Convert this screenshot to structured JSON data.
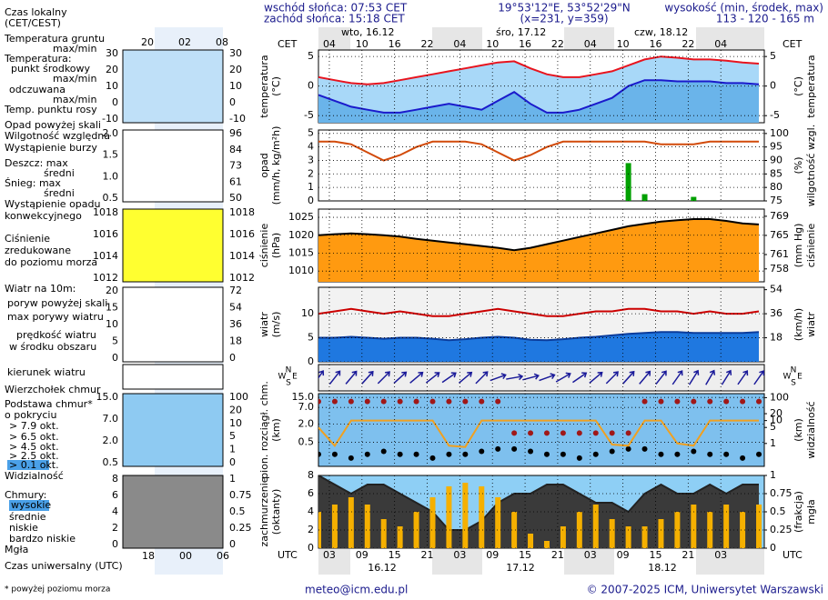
{
  "header": {
    "sunrise": "wschód słońca: 07:53 CET",
    "sunset": "zachód słońca: 15:18 CET",
    "coords": "19°53'12\"E, 53°52'29\"N",
    "grid": "(x=231,  y=359)",
    "alt_title": "wysokość (min, środek, max)",
    "alt_values": "113 - 120 - 165 m"
  },
  "legend": [
    "Czas lokalny",
    "(CET/CEST)",
    "Temperatura gruntu",
    "max/min",
    "Temperatura:",
    "punkt środkowy",
    "max/min",
    "odczuwana",
    "max/min",
    "Temp. punktu rosy",
    "Opad powyżej skali",
    "Wilgotność względna",
    "Wystąpienie burzy",
    "Deszcz: max",
    "średni",
    "Śnieg: max",
    "średni",
    "Wystąpienie opadu",
    "konwekcyjnego",
    "Ciśnienie",
    "zredukowane",
    "do poziomu morza",
    "Wiatr na 10m:",
    "poryw powyżej skali",
    "max porywy wiatru",
    "prędkość wiatru",
    "w środku obszaru",
    "kierunek wiatru",
    "Wierzchołek chmur",
    "Podstawa chmur*",
    "o pokryciu",
    "> 7.9 okt.",
    "> 6.5 okt.",
    "> 4.5 okt.",
    "> 2.5 okt.",
    "> 0.1 okt.",
    "Widzialność",
    "Chmury:",
    "wysokie",
    "średnie",
    "niskie",
    "bardzo niskie",
    "Mgła",
    "Czas uniwersalny (UTC)"
  ],
  "mini": {
    "top_ticks": [
      "20",
      "02",
      "08"
    ],
    "bottom_ticks": [
      "18",
      "00",
      "06"
    ],
    "panels": [
      {
        "left": [
          "30",
          "20",
          "10",
          "0",
          "-10"
        ],
        "right": [
          "30",
          "20",
          "10",
          "0",
          "-10"
        ]
      },
      {
        "left": [
          "2.0",
          "1.5",
          "1.0",
          "0.5"
        ],
        "right": [
          "96",
          "84",
          "73",
          "61",
          "50"
        ]
      },
      {
        "left": [
          "1018",
          "1016",
          "1014",
          "1012"
        ],
        "right": [
          "1018",
          "1016",
          "1014",
          "1012"
        ]
      },
      {
        "left": [
          "20",
          "15",
          "10",
          "5",
          "0"
        ],
        "right": [
          "72",
          "54",
          "36",
          "18",
          "0"
        ]
      },
      {
        "left": [],
        "right": []
      },
      {
        "left": [
          "15.0",
          "7.0",
          "2.0",
          "0.5"
        ],
        "right": [
          "100",
          "20",
          "10",
          "5",
          "1",
          "0"
        ]
      },
      {
        "left": [
          "8",
          "6",
          "4",
          "2",
          "0"
        ],
        "right": [
          "1",
          "0.75",
          "0.5",
          "0.25",
          "0"
        ]
      }
    ]
  },
  "axis": {
    "cet": "CET",
    "utc": "UTC",
    "days": [
      "wto, 16.12",
      "śro, 17.12",
      "czw, 18.12"
    ],
    "dates": [
      "16.12",
      "17.12",
      "18.12"
    ],
    "wind_dir": [
      "N",
      "W",
      "E",
      "S"
    ]
  },
  "time": {
    "x": [
      0,
      3,
      6,
      9,
      12,
      15,
      18,
      21,
      24,
      27,
      30,
      33,
      36,
      39,
      42,
      45,
      48,
      51,
      54,
      57,
      60,
      63,
      66,
      69,
      72,
      75,
      78,
      81
    ],
    "xlim": [
      0,
      82
    ],
    "xticks": [
      {
        "value": 2,
        "label": "03"
      },
      {
        "value": 8,
        "label": "09"
      },
      {
        "value": 14,
        "label": "15"
      },
      {
        "value": 20,
        "label": "21"
      },
      {
        "value": 26,
        "label": "03"
      },
      {
        "value": 32,
        "label": "09"
      },
      {
        "value": 38,
        "label": "15"
      },
      {
        "value": 44,
        "label": "21"
      },
      {
        "value": 50,
        "label": "03"
      },
      {
        "value": 56,
        "label": "09"
      },
      {
        "value": 62,
        "label": "15"
      },
      {
        "value": 68,
        "label": "21"
      },
      {
        "value": 74,
        "label": "03"
      }
    ],
    "xticks_top": [
      {
        "value": 2,
        "label": "04"
      },
      {
        "value": 8,
        "label": "10"
      },
      {
        "value": 14,
        "label": "16"
      },
      {
        "value": 20,
        "label": "22"
      },
      {
        "value": 26,
        "label": "04"
      },
      {
        "value": 32,
        "label": "10"
      },
      {
        "value": 38,
        "label": "16"
      },
      {
        "value": 44,
        "label": "22"
      },
      {
        "value": 50,
        "label": "04"
      },
      {
        "value": 56,
        "label": "10"
      },
      {
        "value": 62,
        "label": "16"
      },
      {
        "value": 68,
        "label": "22"
      },
      {
        "value": 74,
        "label": "04"
      }
    ]
  },
  "chart_data": [
    {
      "type": "line",
      "ylabel": [
        "temperatura",
        "(°C)"
      ],
      "y2label": [
        "(°C)",
        "temperatura"
      ],
      "ylim": [
        -6.2,
        6.1
      ],
      "yticks": [
        5,
        0,
        -5
      ],
      "y2lim": [
        -6.2,
        6.1
      ],
      "y2ticks": [
        5,
        0,
        -5
      ],
      "grid": true,
      "series": [
        {
          "type": "area",
          "color": "#e8141e",
          "fill": "#a8d8f8",
          "values": [
            1.5,
            1.0,
            0.5,
            0.3,
            0.5,
            1.0,
            1.5,
            2.0,
            2.5,
            3.0,
            3.5,
            4.0,
            4.2,
            3.0,
            2.0,
            1.5,
            1.5,
            2.0,
            2.5,
            3.5,
            4.5,
            5.0,
            4.8,
            4.5,
            4.5,
            4.3,
            4.0,
            3.8
          ]
        },
        {
          "type": "area",
          "color": "#1a1acc",
          "fill": "#6ab4ea",
          "values": [
            -1.5,
            -2.5,
            -3.5,
            -4,
            -4.5,
            -4.5,
            -4,
            -3.5,
            -3,
            -3.5,
            -4,
            -2.5,
            -1,
            -3,
            -4.5,
            -4.5,
            -4,
            -3,
            -2,
            0,
            1,
            1,
            0.8,
            0.8,
            0.8,
            0.5,
            0.5,
            0.3
          ]
        }
      ]
    },
    {
      "type": "bar",
      "ylabel": [
        "opad",
        "(mm/h, kg/m²h)"
      ],
      "y2label": [
        "(%)",
        "wilgotność wzgl."
      ],
      "ylim": [
        0,
        5.25
      ],
      "yticks": [
        5,
        4,
        3,
        2,
        1,
        0
      ],
      "y2lim": [
        75,
        101.3
      ],
      "y2ticks": [
        100,
        95,
        90,
        85,
        80,
        75
      ],
      "y2_color": "#c04000",
      "grid": true,
      "series": [
        {
          "type": "bar",
          "color": "#00a000",
          "values": [
            0,
            0,
            0,
            0,
            0,
            0,
            0,
            0,
            0,
            0,
            0,
            0,
            0,
            0,
            0,
            0,
            0,
            0,
            0,
            2.8,
            0.5,
            0,
            0,
            0.3,
            0,
            0,
            0,
            0
          ]
        },
        {
          "type": "line",
          "axis": "y2",
          "color": "#d24a0a",
          "values": [
            97,
            97,
            96,
            93,
            90,
            92,
            95,
            97,
            97,
            97,
            96,
            93,
            90,
            92,
            95,
            97,
            97,
            97,
            97,
            97,
            97,
            96,
            96,
            96,
            97,
            97,
            97,
            97
          ]
        }
      ]
    },
    {
      "type": "area",
      "ylabel": [
        "ciśnienie",
        "(hPa)"
      ],
      "y2label": [
        "(mm Hg)",
        "ciśnienie"
      ],
      "ylim": [
        1007,
        1027.3
      ],
      "yticks": [
        1025,
        1020,
        1015,
        1010
      ],
      "y2lim": [
        755.3,
        770.5
      ],
      "y2ticks": [
        769,
        765,
        761,
        758
      ],
      "grid": true,
      "series": [
        {
          "type": "area",
          "color": "#000000",
          "fill": "#ff9a10",
          "values": [
            1020,
            1020.3,
            1020.5,
            1020.3,
            1020,
            1019.6,
            1019,
            1018.5,
            1018,
            1017.5,
            1017,
            1016.5,
            1015.8,
            1016.5,
            1017.5,
            1018.5,
            1019.5,
            1020.5,
            1021.5,
            1022.5,
            1023.2,
            1023.8,
            1024.2,
            1024.5,
            1024.5,
            1024,
            1023.3,
            1023
          ]
        }
      ]
    },
    {
      "type": "line",
      "ylabel": [
        "wiatr",
        "(m/s)"
      ],
      "y2label": [
        "(km/h)",
        "wiatr"
      ],
      "ylim": [
        0,
        15.5
      ],
      "yticks": [
        10,
        5,
        0
      ],
      "y2lim": [
        0,
        55.8
      ],
      "y2ticks": [
        54,
        36,
        18
      ],
      "grid": true,
      "series": [
        {
          "type": "line",
          "color": "#cc0000",
          "values": [
            10,
            10.5,
            11,
            10.5,
            10,
            10.5,
            10,
            9.5,
            9.5,
            10,
            10.5,
            11,
            10.5,
            10,
            9.5,
            9.5,
            10,
            10.5,
            10.5,
            11,
            11,
            10.5,
            10.5,
            10,
            10.5,
            10,
            10,
            10.5
          ]
        },
        {
          "type": "area",
          "color": "#0a3c9c",
          "fill": "#1f78e0",
          "values": [
            5,
            5,
            5.2,
            5,
            4.8,
            5,
            5,
            4.8,
            4.5,
            4.7,
            5,
            5.2,
            5,
            4.6,
            4.5,
            4.7,
            5,
            5.2,
            5.5,
            5.8,
            6,
            6.2,
            6.2,
            6,
            6,
            6,
            6,
            6.2
          ]
        }
      ]
    },
    {
      "type": "arrows",
      "ylabel": [],
      "y2label": [],
      "series": [
        {
          "type": "arrows",
          "color": "#1a1a99",
          "values": [
            215,
            218,
            220,
            222,
            225,
            228,
            230,
            232,
            235,
            230,
            225,
            250,
            260,
            255,
            250,
            240,
            235,
            230,
            225,
            222,
            220,
            218,
            215,
            212,
            210,
            212,
            215,
            215
          ]
        }
      ]
    },
    {
      "type": "scatter",
      "ylabel": [
        "pion. rozciągł. chm.",
        "(km)"
      ],
      "y2label": [
        "(km)",
        "widzialność"
      ],
      "log": true,
      "ylim": [
        0.08,
        20
      ],
      "yticks": [
        {
          "value": 15,
          "label": "15.0"
        },
        {
          "value": 7,
          "label": "7.0"
        },
        {
          "value": 2,
          "label": "2.0"
        },
        {
          "value": 0.5,
          "label": "0.5"
        }
      ],
      "y2log": true,
      "y2lim": [
        0.1,
        150
      ],
      "y2ticks": [
        100,
        20,
        10,
        5,
        1
      ],
      "y2_color": "#c06000",
      "grid": true,
      "series": [
        {
          "type": "dots",
          "color": "#a01818",
          "values": [
            11,
            11,
            11,
            11,
            11,
            11,
            11,
            11,
            11,
            11,
            11,
            11,
            1.0,
            1.0,
            1.0,
            1.0,
            1.0,
            1.0,
            1.0,
            1.0,
            11,
            11,
            11,
            11,
            11,
            11,
            11,
            11
          ]
        },
        {
          "type": "dots",
          "color": "#000000",
          "values": [
            0.2,
            0.2,
            0.15,
            0.2,
            0.25,
            0.2,
            0.2,
            0.15,
            0.2,
            0.2,
            0.25,
            0.3,
            0.3,
            0.25,
            0.2,
            0.2,
            0.15,
            0.2,
            0.25,
            0.3,
            0.3,
            0.2,
            0.2,
            0.25,
            0.2,
            0.2,
            0.15,
            0.2
          ]
        },
        {
          "type": "line",
          "axis": "y2",
          "color": "#f0a020",
          "values": [
            5,
            0.8,
            10,
            10,
            10,
            10,
            10,
            10,
            0.8,
            0.7,
            10,
            10,
            10,
            10,
            10,
            10,
            10,
            10,
            0.9,
            0.8,
            10,
            10,
            1,
            0.8,
            10,
            10,
            10,
            10
          ]
        }
      ]
    },
    {
      "type": "area",
      "ylabel": [
        "zachmurzenie",
        "(oktanty)"
      ],
      "y2label": [
        "(frakcja)",
        "mgła"
      ],
      "ylim": [
        0,
        8
      ],
      "yticks": [
        8,
        6,
        4,
        2,
        0
      ],
      "y2lim": [
        0,
        1
      ],
      "y2ticks": [
        1,
        0.75,
        0.5,
        0.25,
        0
      ],
      "y2_color": "#e08000",
      "grid": true,
      "series": [
        {
          "type": "area",
          "color": "#222222",
          "fill": "#3a3a3a",
          "values": [
            8,
            7,
            6,
            7,
            7,
            6,
            5,
            4,
            2,
            2,
            3,
            5,
            6,
            6,
            7,
            7,
            6,
            5,
            5,
            4,
            6,
            7,
            6,
            6,
            7,
            6,
            7,
            7
          ]
        },
        {
          "type": "bar",
          "axis": "y2",
          "color": "#f5b000",
          "values": [
            0.5,
            0.6,
            0.7,
            0.6,
            0.4,
            0.3,
            0.5,
            0.7,
            0.85,
            0.9,
            0.85,
            0.7,
            0.5,
            0.2,
            0.1,
            0.3,
            0.5,
            0.6,
            0.4,
            0.3,
            0.3,
            0.4,
            0.5,
            0.6,
            0.5,
            0.6,
            0.5,
            0.6
          ]
        }
      ]
    }
  ],
  "footer": {
    "email": "meteo@icm.edu.pl",
    "copyright": "© 2007-2025 ICM, Uniwersytet Warszawski",
    "note": "* powyżej poziomu morza"
  }
}
